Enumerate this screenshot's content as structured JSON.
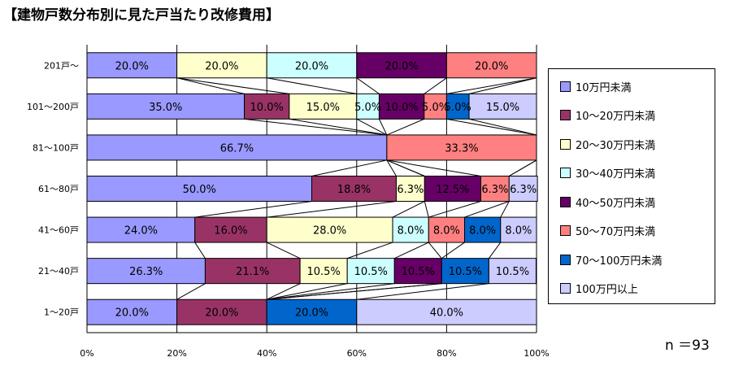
{
  "title": "【建物戸数分布別に見た戸当たり改修費用】",
  "sample_size_label": "n ＝93",
  "chart_data": {
    "type": "bar",
    "orientation": "horizontal",
    "stacked": "percent",
    "categories": [
      "201戸～",
      "101～200戸",
      "81～100戸",
      "61～80戸",
      "41～60戸",
      "21～40戸",
      "1～20戸"
    ],
    "xlim": [
      0,
      100
    ],
    "x_ticks": [
      "0%",
      "20%",
      "40%",
      "60%",
      "80%",
      "100%"
    ],
    "grid": "vertical",
    "legend_position": "right",
    "series_connector_lines": true,
    "series": [
      {
        "name": "10万円未満",
        "color": "#9999ff",
        "values": [
          20.0,
          35.0,
          66.7,
          50.0,
          24.0,
          26.3,
          20.0
        ],
        "labels": [
          "20.0%",
          "35.0%",
          "66.7%",
          "50.0%",
          "24.0%",
          "26.3%",
          "20.0%"
        ]
      },
      {
        "name": "10～20万円未満",
        "color": "#993366",
        "values": [
          0,
          10.0,
          0,
          18.8,
          16.0,
          21.1,
          20.0
        ],
        "labels": [
          "",
          "10.0%",
          "",
          "18.8%",
          "16.0%",
          "21.1%",
          "20.0%"
        ]
      },
      {
        "name": "20～30万円未満",
        "color": "#ffffcc",
        "values": [
          20.0,
          15.0,
          0,
          6.3,
          28.0,
          10.5,
          0
        ],
        "labels": [
          "20.0%",
          "15.0%",
          "",
          "6.3%",
          "28.0%",
          "10.5%",
          ""
        ]
      },
      {
        "name": "30～40万円未満",
        "color": "#ccffff",
        "values": [
          20.0,
          5.0,
          0,
          0,
          8.0,
          10.5,
          0
        ],
        "labels": [
          "20.0%",
          "5.0%",
          "",
          "",
          "8.0%",
          "10.5%",
          ""
        ]
      },
      {
        "name": "40～50万円未満",
        "color": "#660066",
        "values": [
          20.0,
          10.0,
          0,
          12.5,
          0,
          10.5,
          0
        ],
        "labels": [
          "20.0%",
          "10.0%",
          "",
          "12.5%",
          "",
          "10.5%",
          ""
        ]
      },
      {
        "name": "50～70万円未満",
        "color": "#ff8080",
        "values": [
          20.0,
          5.0,
          33.3,
          6.3,
          8.0,
          0,
          0
        ],
        "labels": [
          "20.0%",
          "5.0%",
          "33.3%",
          "6.3%",
          "8.0%",
          "",
          ""
        ]
      },
      {
        "name": "70～100万円未満",
        "color": "#0066cc",
        "values": [
          0,
          5.0,
          0,
          0,
          8.0,
          10.5,
          20.0
        ],
        "labels": [
          "",
          "5.0%",
          "",
          "",
          "8.0%",
          "10.5%",
          "20.0%"
        ]
      },
      {
        "name": "100万円以上",
        "color": "#ccccff",
        "values": [
          0,
          15.0,
          0,
          6.3,
          8.0,
          10.5,
          40.0
        ],
        "labels": [
          "",
          "15.0%",
          "",
          "6.3%",
          "8.0%",
          "10.5%",
          "40.0%"
        ]
      }
    ]
  }
}
